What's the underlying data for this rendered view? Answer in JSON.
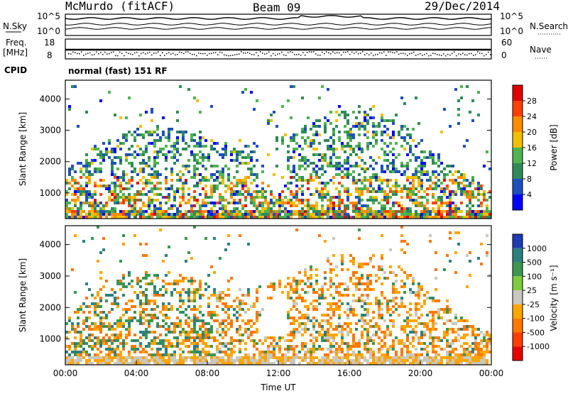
{
  "header": {
    "title": "McMurdo (fitACF)",
    "beam": "Beam 09",
    "date": "29/Dec/2014"
  },
  "noise_panel": {
    "left_label": "N.Sky",
    "right_label": "N.Search",
    "left_tick_top": "10^5",
    "left_tick_bottom": "10^0",
    "right_tick_top": "10^5",
    "right_tick_bottom": "10^0"
  },
  "freq_panel": {
    "left_label_1": "Freq.",
    "left_label_2": "[MHz]",
    "left_tick_top": "18",
    "left_tick_bottom": "8",
    "right_label": "Nave",
    "right_tick_top": "60",
    "right_tick_bottom": "0"
  },
  "cpid": {
    "label": "CPID",
    "value": "normal (fast) 151 RF"
  },
  "colors": {
    "power": [
      "#0000ff",
      "#1f4fbf",
      "#2e8b57",
      "#4fb34f",
      "#f0c000",
      "#ff8c00",
      "#ff4000",
      "#e00000"
    ],
    "velocity": [
      "#1e3cb4",
      "#2e7f7f",
      "#3c9650",
      "#7ccd3c",
      "#c8c8c0",
      "#ffa500",
      "#ff7800",
      "#ff3c00",
      "#e60000"
    ]
  },
  "chart_data": [
    {
      "type": "heatmap",
      "name": "power",
      "ylabel": "Slant Range [km]",
      "xlabel": "",
      "x_ticks": [
        "00:00",
        "04:00",
        "08:00",
        "12:00",
        "16:00",
        "20:00",
        "00:00"
      ],
      "y_ticks": [
        1000,
        2000,
        3000,
        4000
      ],
      "ylim": [
        180,
        4600
      ],
      "colorbar_label": "Power [dB]",
      "colorbar_ticks": [
        4,
        8,
        12,
        16,
        20,
        24,
        28
      ],
      "colorbar_range": [
        0,
        32
      ]
    },
    {
      "type": "heatmap",
      "name": "velocity",
      "ylabel": "Slant Range [km]",
      "xlabel": "Time UT",
      "x_ticks": [
        "00:00",
        "04:00",
        "08:00",
        "12:00",
        "16:00",
        "20:00",
        "00:00"
      ],
      "y_ticks": [
        1000,
        2000,
        3000,
        4000
      ],
      "ylim": [
        180,
        4600
      ],
      "colorbar_label": "Velocity [m s⁻¹]",
      "colorbar_ticks": [
        "1000",
        "500",
        "100",
        "25",
        "-25",
        "-100",
        "-500",
        "-1000"
      ]
    }
  ]
}
